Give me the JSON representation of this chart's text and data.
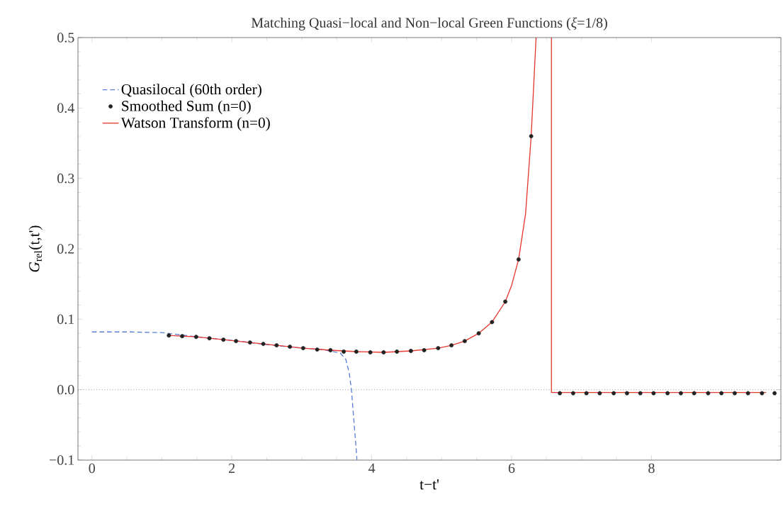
{
  "chart_data": {
    "type": "line",
    "title": "Matching Quasi−local and Non−local Green Functions (*ξ*=1/8)",
    "xlabel": "t−t'",
    "ylabel": "*G*$_{rel}$(t,t')",
    "xlim": [
      -0.2,
      9.85
    ],
    "ylim": [
      -0.1,
      0.5
    ],
    "xticks": [
      0,
      2,
      4,
      6,
      8
    ],
    "yticks": [
      {
        "value": -0.1,
        "label": "−0.1"
      },
      {
        "value": 0,
        "label": "0.0"
      },
      {
        "value": 0.1,
        "label": "0.1"
      },
      {
        "value": 0.2,
        "label": "0.2"
      },
      {
        "value": 0.3,
        "label": "0.3"
      },
      {
        "value": 0.4,
        "label": "0.4"
      },
      {
        "value": 0.5,
        "label": "0.5"
      }
    ],
    "legend": "top left",
    "ref_lines": [
      {
        "axis": "y",
        "value": 0,
        "color": "#999999",
        "line_style": "dotted"
      }
    ],
    "series": [
      {
        "name": "Quasilocal (60th order)",
        "type": "line",
        "line_style": "dashed",
        "marker": "none",
        "color": "#5b7fd6",
        "x": [
          0,
          0.5,
          1.0,
          1.5,
          2.0,
          2.5,
          3.0,
          3.3,
          3.55,
          3.63,
          3.68,
          3.71,
          3.75,
          3.79
        ],
        "values": [
          0.082,
          0.082,
          0.081,
          0.075,
          0.07,
          0.064,
          0.059,
          0.057,
          0.052,
          0.043,
          0.023,
          0,
          -0.05,
          -0.1
        ]
      },
      {
        "name": "Smoothed Sum (n=0)",
        "type": "scatter",
        "marker": "circle",
        "color": "#222222",
        "x": [
          1.1,
          1.29,
          1.49,
          1.68,
          1.88,
          2.06,
          2.26,
          2.45,
          2.64,
          2.83,
          3.02,
          3.22,
          3.41,
          3.6,
          3.78,
          3.98,
          4.17,
          4.36,
          4.56,
          4.75,
          4.95,
          5.14,
          5.33,
          5.53,
          5.72,
          5.91,
          6.1,
          6.28,
          6.69,
          6.88,
          7.07,
          7.26,
          7.46,
          7.65,
          7.84,
          8.03,
          8.23,
          8.42,
          8.61,
          8.81,
          9.0,
          9.19,
          9.38,
          9.58,
          9.76
        ],
        "values": [
          0.077,
          0.076,
          0.075,
          0.073,
          0.071,
          0.069,
          0.067,
          0.065,
          0.063,
          0.061,
          0.059,
          0.057,
          0.056,
          0.054,
          0.054,
          0.053,
          0.053,
          0.054,
          0.055,
          0.056,
          0.059,
          0.063,
          0.069,
          0.08,
          0.096,
          0.125,
          0.185,
          0.36,
          -0.005,
          -0.005,
          -0.005,
          -0.005,
          -0.005,
          -0.005,
          -0.005,
          -0.005,
          -0.005,
          -0.005,
          -0.005,
          -0.005,
          -0.005,
          -0.005,
          -0.005,
          -0.005,
          -0.005
        ]
      },
      {
        "name": "Watson Transform (n=0)",
        "type": "line",
        "line_style": "solid",
        "marker": "none",
        "color": "#e8382f",
        "x": [
          1.1,
          1.49,
          1.88,
          2.26,
          2.64,
          3.02,
          3.41,
          3.78,
          4.17,
          4.56,
          4.95,
          5.14,
          5.33,
          5.53,
          5.72,
          5.91,
          6.0,
          6.1,
          6.2,
          6.28,
          6.35,
          6.46,
          6.57,
          6.57,
          9.64
        ],
        "values": [
          0.077,
          0.075,
          0.071,
          0.067,
          0.063,
          0.059,
          0.056,
          0.054,
          0.053,
          0.055,
          0.059,
          0.063,
          0.069,
          0.08,
          0.096,
          0.125,
          0.148,
          0.185,
          0.25,
          0.36,
          0.5,
          null,
          0.5,
          -0.004,
          -0.004
        ]
      }
    ]
  }
}
